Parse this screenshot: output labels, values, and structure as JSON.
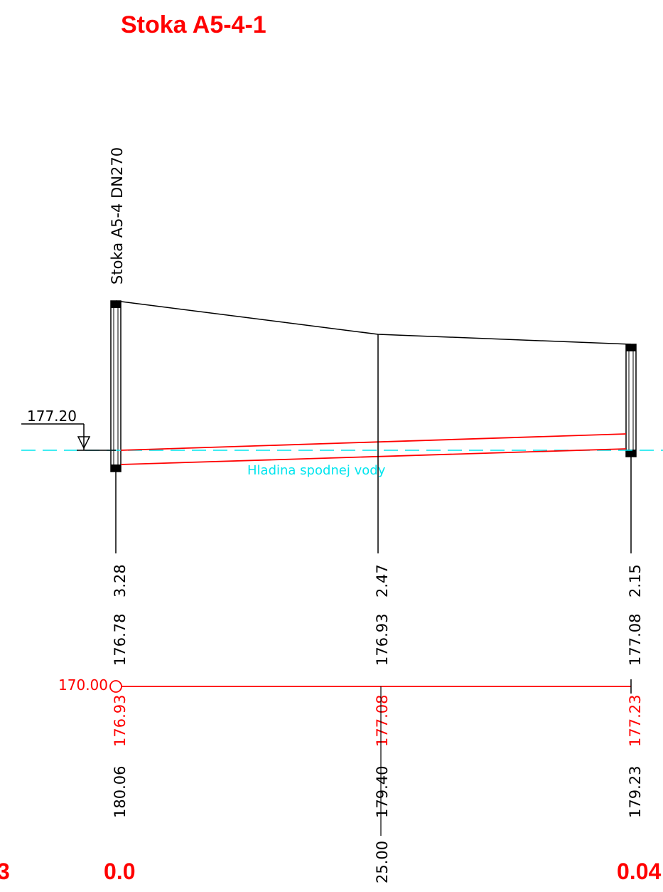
{
  "title": "Stoka A5-4-1",
  "pipe_label": "Stoka A5-4 DN270",
  "water_level": {
    "label": "Hladina spodnej vody",
    "elevation": "177.20"
  },
  "datum": "170.00",
  "left_edge_fragment": "3",
  "stations": [
    {
      "id": "start",
      "distance": "",
      "depth": "3.28",
      "invert": "176.78",
      "design": "176.93",
      "terrain": "180.06",
      "chainage": "0.0"
    },
    {
      "id": "middle",
      "distance": "25.00",
      "depth": "2.47",
      "invert": "176.93",
      "design": "177.08",
      "terrain": "179.40",
      "chainage": ""
    },
    {
      "id": "end",
      "distance": "",
      "depth": "2.15",
      "invert": "177.08",
      "design": "177.23",
      "terrain": "179.23",
      "chainage": "0.04"
    }
  ],
  "colors": {
    "pipe": "#ff0000",
    "terrain": "#000000",
    "water": "#00e5ee",
    "title": "#ff0000"
  }
}
